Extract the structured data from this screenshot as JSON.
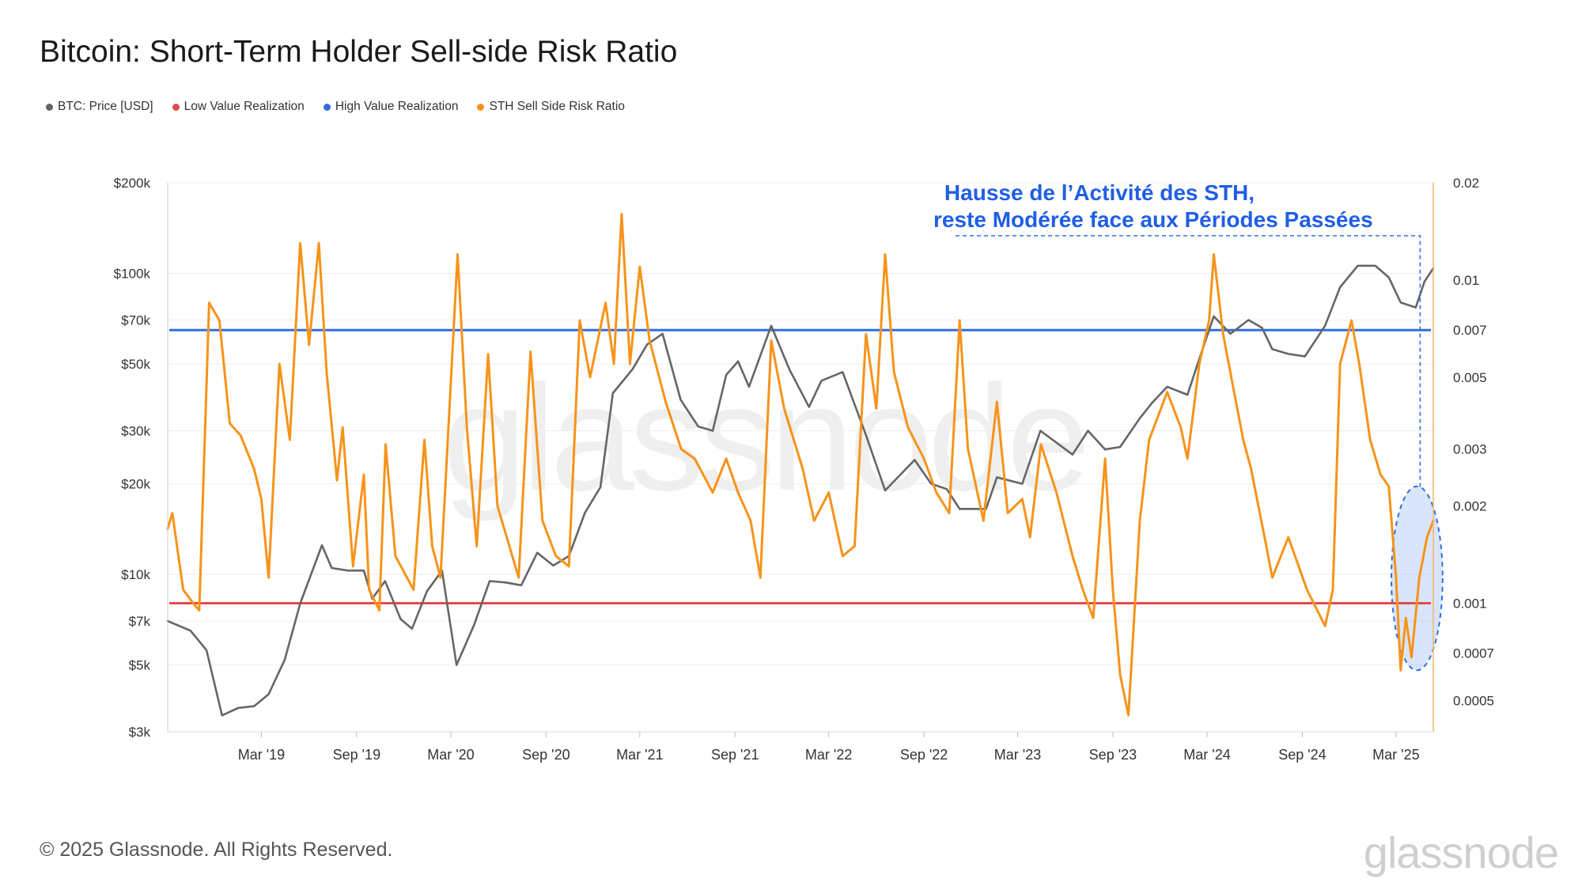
{
  "title": "Bitcoin: Short-Term Holder Sell-side Risk Ratio",
  "legend": [
    {
      "label": "BTC: Price [USD]",
      "color": "#666666"
    },
    {
      "label": "Low Value Realization",
      "color": "#e8474c"
    },
    {
      "label": "High Value Realization",
      "color": "#2f6fdd"
    },
    {
      "label": "STH Sell Side Risk Ratio",
      "color": "#f7931a"
    }
  ],
  "annotation": {
    "line1": "Hausse de l’Activité des STH,",
    "line2": "reste Modérée face aux Périodes Passées",
    "color": "#1f5ee6"
  },
  "watermark": "glassnode",
  "footer": {
    "copyright": "© 2025 Glassnode. All Rights Reserved.",
    "brand": "glassnode"
  },
  "chart_data": {
    "type": "line",
    "x_ticks": [
      "Mar '19",
      "Sep '19",
      "Mar '20",
      "Sep '20",
      "Mar '21",
      "Sep '21",
      "Mar '22",
      "Sep '22",
      "Mar '23",
      "Sep '23",
      "Mar '24",
      "Sep '24",
      "Mar '25"
    ],
    "x_range": [
      "2018-09-01",
      "2025-05-12"
    ],
    "y_left": {
      "scale": "log",
      "range": [
        3000,
        200000
      ],
      "ticks": [
        {
          "value": 200000,
          "label": "$200k"
        },
        {
          "value": 100000,
          "label": "$100k"
        },
        {
          "value": 70000,
          "label": "$70k"
        },
        {
          "value": 50000,
          "label": "$50k"
        },
        {
          "value": 30000,
          "label": "$30k"
        },
        {
          "value": 20000,
          "label": "$20k"
        },
        {
          "value": 10000,
          "label": "$10k"
        },
        {
          "value": 7000,
          "label": "$7k"
        },
        {
          "value": 5000,
          "label": "$5k"
        },
        {
          "value": 3000,
          "label": "$3k"
        }
      ]
    },
    "y_right": {
      "scale": "log",
      "range": [
        0.0004,
        0.02
      ],
      "ticks": [
        {
          "value": 0.02,
          "label": "0.02"
        },
        {
          "value": 0.01,
          "label": "0.01"
        },
        {
          "value": 0.007,
          "label": "0.007"
        },
        {
          "value": 0.005,
          "label": "0.005"
        },
        {
          "value": 0.003,
          "label": "0.003"
        },
        {
          "value": 0.002,
          "label": "0.002"
        },
        {
          "value": 0.001,
          "label": "0.001"
        },
        {
          "value": 0.0007,
          "label": "0.0007"
        },
        {
          "value": 0.0005,
          "label": "0.0005"
        }
      ]
    },
    "thresholds": {
      "low_value_realization": 0.001,
      "high_value_realization": 0.007
    },
    "series": [
      {
        "name": "BTC: Price [USD]",
        "axis": "left",
        "color": "#666666",
        "points": [
          [
            "2018-09-01",
            7000
          ],
          [
            "2018-10-15",
            6500
          ],
          [
            "2018-11-15",
            5600
          ],
          [
            "2018-12-15",
            3400
          ],
          [
            "2019-01-15",
            3600
          ],
          [
            "2019-02-15",
            3650
          ],
          [
            "2019-03-15",
            4000
          ],
          [
            "2019-04-15",
            5200
          ],
          [
            "2019-05-15",
            8000
          ],
          [
            "2019-06-26",
            12500
          ],
          [
            "2019-07-15",
            10500
          ],
          [
            "2019-08-15",
            10300
          ],
          [
            "2019-09-15",
            10300
          ],
          [
            "2019-10-01",
            8300
          ],
          [
            "2019-10-26",
            9500
          ],
          [
            "2019-11-25",
            7100
          ],
          [
            "2019-12-17",
            6600
          ],
          [
            "2020-01-15",
            8800
          ],
          [
            "2020-02-13",
            10300
          ],
          [
            "2020-03-12",
            5000
          ],
          [
            "2020-04-15",
            6800
          ],
          [
            "2020-05-15",
            9500
          ],
          [
            "2020-06-15",
            9400
          ],
          [
            "2020-07-15",
            9200
          ],
          [
            "2020-08-15",
            11800
          ],
          [
            "2020-09-15",
            10700
          ],
          [
            "2020-10-15",
            11500
          ],
          [
            "2020-11-15",
            16000
          ],
          [
            "2020-12-15",
            19500
          ],
          [
            "2021-01-08",
            40000
          ],
          [
            "2021-02-15",
            48000
          ],
          [
            "2021-03-15",
            58000
          ],
          [
            "2021-04-14",
            63000
          ],
          [
            "2021-05-19",
            38000
          ],
          [
            "2021-06-22",
            31000
          ],
          [
            "2021-07-20",
            30000
          ],
          [
            "2021-08-15",
            46000
          ],
          [
            "2021-09-07",
            51000
          ],
          [
            "2021-09-28",
            42000
          ],
          [
            "2021-11-10",
            67000
          ],
          [
            "2021-12-15",
            48000
          ],
          [
            "2022-01-22",
            36000
          ],
          [
            "2022-02-15",
            44000
          ],
          [
            "2022-03-28",
            47000
          ],
          [
            "2022-05-12",
            29000
          ],
          [
            "2022-06-18",
            19000
          ],
          [
            "2022-08-14",
            24000
          ],
          [
            "2022-09-15",
            20000
          ],
          [
            "2022-10-15",
            19200
          ],
          [
            "2022-11-09",
            16500
          ],
          [
            "2022-12-30",
            16500
          ],
          [
            "2023-01-20",
            21000
          ],
          [
            "2023-03-10",
            20000
          ],
          [
            "2023-04-14",
            30000
          ],
          [
            "2023-06-15",
            25000
          ],
          [
            "2023-07-15",
            30000
          ],
          [
            "2023-08-17",
            26000
          ],
          [
            "2023-09-15",
            26500
          ],
          [
            "2023-10-23",
            33000
          ],
          [
            "2023-11-15",
            37000
          ],
          [
            "2023-12-15",
            42000
          ],
          [
            "2024-01-23",
            39500
          ],
          [
            "2024-02-15",
            52000
          ],
          [
            "2024-03-14",
            72000
          ],
          [
            "2024-04-15",
            63000
          ],
          [
            "2024-05-20",
            70000
          ],
          [
            "2024-06-15",
            66000
          ],
          [
            "2024-07-05",
            56000
          ],
          [
            "2024-08-05",
            54000
          ],
          [
            "2024-09-06",
            53000
          ],
          [
            "2024-10-15",
            67000
          ],
          [
            "2024-11-13",
            90000
          ],
          [
            "2024-12-17",
            106000
          ],
          [
            "2025-01-20",
            106000
          ],
          [
            "2025-02-15",
            97000
          ],
          [
            "2025-03-10",
            80000
          ],
          [
            "2025-04-08",
            77000
          ],
          [
            "2025-04-25",
            94000
          ],
          [
            "2025-05-12",
            104000
          ]
        ]
      },
      {
        "name": "STH Sell Side Risk Ratio",
        "axis": "right",
        "color": "#f7931a",
        "points": [
          [
            "2018-09-01",
            0.0017
          ],
          [
            "2018-09-10",
            0.0019
          ],
          [
            "2018-10-01",
            0.0011
          ],
          [
            "2018-10-20",
            0.001
          ],
          [
            "2018-11-01",
            0.00095
          ],
          [
            "2018-11-20",
            0.0085
          ],
          [
            "2018-12-10",
            0.0075
          ],
          [
            "2018-12-30",
            0.0036
          ],
          [
            "2019-01-20",
            0.0033
          ],
          [
            "2019-02-15",
            0.0026
          ],
          [
            "2019-03-01",
            0.0021
          ],
          [
            "2019-03-15",
            0.0012
          ],
          [
            "2019-04-05",
            0.0055
          ],
          [
            "2019-04-25",
            0.0032
          ],
          [
            "2019-05-15",
            0.013
          ],
          [
            "2019-06-01",
            0.0063
          ],
          [
            "2019-06-20",
            0.013
          ],
          [
            "2019-07-05",
            0.0052
          ],
          [
            "2019-07-25",
            0.0024
          ],
          [
            "2019-08-05",
            0.0035
          ],
          [
            "2019-08-25",
            0.0013
          ],
          [
            "2019-09-15",
            0.0025
          ],
          [
            "2019-09-25",
            0.0011
          ],
          [
            "2019-10-15",
            0.00095
          ],
          [
            "2019-10-27",
            0.0031
          ],
          [
            "2019-11-15",
            0.0014
          ],
          [
            "2019-12-20",
            0.0011
          ],
          [
            "2020-01-10",
            0.0032
          ],
          [
            "2020-01-25",
            0.0015
          ],
          [
            "2020-02-10",
            0.0012
          ],
          [
            "2020-03-14",
            0.012
          ],
          [
            "2020-04-01",
            0.0035
          ],
          [
            "2020-04-20",
            0.0015
          ],
          [
            "2020-05-12",
            0.0059
          ],
          [
            "2020-05-30",
            0.002
          ],
          [
            "2020-07-10",
            0.0012
          ],
          [
            "2020-08-02",
            0.006
          ],
          [
            "2020-08-25",
            0.0018
          ],
          [
            "2020-09-20",
            0.0014
          ],
          [
            "2020-10-15",
            0.0013
          ],
          [
            "2020-11-05",
            0.0075
          ],
          [
            "2020-11-25",
            0.005
          ],
          [
            "2020-12-25",
            0.0085
          ],
          [
            "2021-01-10",
            0.0055
          ],
          [
            "2021-01-25",
            0.016
          ],
          [
            "2021-02-10",
            0.0055
          ],
          [
            "2021-03-01",
            0.011
          ],
          [
            "2021-03-20",
            0.0065
          ],
          [
            "2021-04-20",
            0.0042
          ],
          [
            "2021-05-20",
            0.003
          ],
          [
            "2021-06-15",
            0.0028
          ],
          [
            "2021-07-20",
            0.0022
          ],
          [
            "2021-08-15",
            0.0028
          ],
          [
            "2021-09-07",
            0.0022
          ],
          [
            "2021-10-01",
            0.0018
          ],
          [
            "2021-10-20",
            0.0012
          ],
          [
            "2021-11-10",
            0.0065
          ],
          [
            "2021-12-05",
            0.004
          ],
          [
            "2022-01-10",
            0.0026
          ],
          [
            "2022-02-01",
            0.0018
          ],
          [
            "2022-03-01",
            0.0022
          ],
          [
            "2022-03-28",
            0.0014
          ],
          [
            "2022-04-20",
            0.0015
          ],
          [
            "2022-05-12",
            0.0068
          ],
          [
            "2022-06-01",
            0.004
          ],
          [
            "2022-06-18",
            0.012
          ],
          [
            "2022-07-05",
            0.0052
          ],
          [
            "2022-08-01",
            0.0035
          ],
          [
            "2022-09-01",
            0.0028
          ],
          [
            "2022-09-25",
            0.0022
          ],
          [
            "2022-10-20",
            0.0019
          ],
          [
            "2022-11-09",
            0.0075
          ],
          [
            "2022-11-25",
            0.003
          ],
          [
            "2022-12-25",
            0.0018
          ],
          [
            "2023-01-20",
            0.0042
          ],
          [
            "2023-02-10",
            0.0019
          ],
          [
            "2023-03-10",
            0.0021
          ],
          [
            "2023-03-25",
            0.0016
          ],
          [
            "2023-04-15",
            0.0031
          ],
          [
            "2023-05-15",
            0.0022
          ],
          [
            "2023-06-15",
            0.0014
          ],
          [
            "2023-07-05",
            0.0011
          ],
          [
            "2023-07-25",
            0.0009
          ],
          [
            "2023-08-17",
            0.0028
          ],
          [
            "2023-09-01",
            0.0011
          ],
          [
            "2023-09-15",
            0.0006
          ],
          [
            "2023-10-01",
            0.00045
          ],
          [
            "2023-10-23",
            0.0018
          ],
          [
            "2023-11-10",
            0.0032
          ],
          [
            "2023-12-15",
            0.0045
          ],
          [
            "2024-01-10",
            0.0035
          ],
          [
            "2024-01-23",
            0.0028
          ],
          [
            "2024-02-15",
            0.0055
          ],
          [
            "2024-03-05",
            0.0075
          ],
          [
            "2024-03-14",
            0.012
          ],
          [
            "2024-04-01",
            0.0068
          ],
          [
            "2024-04-20",
            0.0047
          ],
          [
            "2024-05-10",
            0.0032
          ],
          [
            "2024-05-25",
            0.0026
          ],
          [
            "2024-06-20",
            0.0016
          ],
          [
            "2024-07-05",
            0.0012
          ],
          [
            "2024-08-05",
            0.0016
          ],
          [
            "2024-09-10",
            0.0011
          ],
          [
            "2024-10-15",
            0.00085
          ],
          [
            "2024-10-30",
            0.0011
          ],
          [
            "2024-11-13",
            0.0055
          ],
          [
            "2024-12-05",
            0.0075
          ],
          [
            "2024-12-20",
            0.0055
          ],
          [
            "2025-01-10",
            0.0032
          ],
          [
            "2025-01-30",
            0.0025
          ],
          [
            "2025-02-15",
            0.0023
          ],
          [
            "2025-03-01",
            0.0012
          ],
          [
            "2025-03-10",
            0.00062
          ],
          [
            "2025-03-20",
            0.0009
          ],
          [
            "2025-03-31",
            0.00068
          ],
          [
            "2025-04-15",
            0.0012
          ],
          [
            "2025-04-30",
            0.0016
          ],
          [
            "2025-05-12",
            0.0018
          ]
        ]
      }
    ],
    "highlight": {
      "type": "ellipse",
      "x_range": [
        "2025-02-20",
        "2025-05-30"
      ],
      "y_right_range": [
        0.00062,
        0.0023
      ]
    },
    "grid": true
  }
}
